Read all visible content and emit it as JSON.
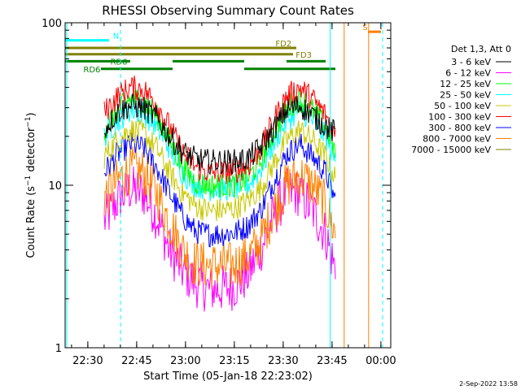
{
  "chart_data": {
    "type": "line",
    "title": "RHESSI Observing Summary Count Rates",
    "xlabel": "Start Time (05-Jan-18 22:23:02)",
    "ylabel": "Count Rate (s⁻¹ detector⁻¹)",
    "ylabel_main": "Count Rate (s",
    "ylabel_sup1": "−1",
    "ylabel_mid": " detector",
    "ylabel_sup2": "−1",
    "ylabel_end": ")",
    "yscale": "log",
    "ylim": [
      1,
      100
    ],
    "xlim": [
      "22:23:02",
      "00:03:02"
    ],
    "xlim_minutes": [
      0,
      100
    ],
    "x_ticks": [
      {
        "label": "22:30",
        "minute": 6.97
      },
      {
        "label": "22:45",
        "minute": 21.97
      },
      {
        "label": "23:00",
        "minute": 36.97
      },
      {
        "label": "23:15",
        "minute": 51.97
      },
      {
        "label": "23:30",
        "minute": 66.97
      },
      {
        "label": "23:45",
        "minute": 81.97
      },
      {
        "label": "00:00",
        "minute": 96.97
      }
    ],
    "y_ticks": [
      {
        "label": "1",
        "value": 1
      },
      {
        "label": "10",
        "value": 10
      },
      {
        "label": "100",
        "value": 100
      }
    ],
    "legend_header": "Det 1,3, Att 0",
    "legend_position": "right",
    "series": [
      {
        "name": "3 - 6 keV",
        "color": "#000000",
        "x": [
          12,
          16,
          20,
          24,
          28,
          32,
          36,
          40,
          44,
          48,
          52,
          56,
          60,
          64,
          68,
          72,
          76,
          80,
          83
        ],
        "y": [
          22,
          28,
          31,
          30,
          26,
          20,
          16,
          14.5,
          14,
          14,
          14,
          14.5,
          17,
          22,
          29,
          31,
          27,
          23,
          21
        ]
      },
      {
        "name": "6 - 12 keV",
        "color": "#ff00ff",
        "x": [
          12,
          16,
          20,
          24,
          28,
          32,
          36,
          40,
          44,
          48,
          52,
          56,
          60,
          64,
          68,
          72,
          76,
          80,
          83
        ],
        "y": [
          6,
          8,
          9.5,
          9,
          6.5,
          4,
          3,
          2.5,
          2.3,
          2.3,
          2.4,
          2.8,
          4,
          6.5,
          9,
          9,
          7,
          5,
          3
        ]
      },
      {
        "name": "12 - 25 keV",
        "color": "#00ff00",
        "x": [
          12,
          16,
          20,
          24,
          28,
          32,
          36,
          40,
          44,
          48,
          52,
          56,
          60,
          64,
          68,
          72,
          76,
          80,
          83
        ],
        "y": [
          22,
          29,
          34,
          33,
          27,
          19,
          13,
          10.5,
          10,
          10,
          10,
          11,
          14,
          21,
          30,
          34,
          29,
          23,
          16
        ]
      },
      {
        "name": "25 - 50 keV",
        "color": "#00ffff",
        "x": [
          12,
          16,
          20,
          24,
          28,
          32,
          36,
          40,
          44,
          48,
          52,
          56,
          60,
          64,
          68,
          72,
          76,
          80,
          83
        ],
        "y": [
          20,
          25,
          29,
          28,
          23,
          17,
          12,
          10,
          9.5,
          9.5,
          9.6,
          10,
          12.5,
          18,
          25,
          29,
          25,
          20,
          14
        ]
      },
      {
        "name": "50 - 100 keV",
        "color": "#c8c800",
        "x": [
          12,
          16,
          20,
          24,
          28,
          32,
          36,
          40,
          44,
          48,
          52,
          56,
          60,
          64,
          68,
          72,
          76,
          80,
          83
        ],
        "y": [
          15,
          19,
          22,
          21,
          17,
          12,
          9,
          7.5,
          7,
          7,
          7.2,
          8,
          9.5,
          13.5,
          19,
          22,
          19,
          15,
          11
        ]
      },
      {
        "name": "100 - 300 keV",
        "color": "#ff0000",
        "x": [
          12,
          16,
          20,
          24,
          28,
          32,
          36,
          40,
          44,
          48,
          52,
          56,
          60,
          64,
          68,
          72,
          76,
          80,
          83
        ],
        "y": [
          28,
          35,
          40,
          39,
          32,
          23,
          16,
          13,
          12,
          12,
          12.2,
          13,
          16.5,
          25,
          35,
          40,
          34,
          27,
          20
        ]
      },
      {
        "name": "300 - 800 keV",
        "color": "#0000ff",
        "x": [
          12,
          16,
          20,
          24,
          28,
          32,
          36,
          40,
          44,
          48,
          52,
          56,
          60,
          64,
          68,
          72,
          76,
          80,
          83
        ],
        "y": [
          12,
          15.5,
          18,
          17,
          13,
          9,
          6.5,
          5.2,
          5,
          5,
          5.1,
          5.6,
          7,
          10.5,
          15.5,
          18,
          15,
          12,
          8
        ]
      },
      {
        "name": "800 - 7000 keV",
        "color": "#ff8000",
        "x": [
          12,
          16,
          20,
          24,
          28,
          32,
          36,
          40,
          44,
          48,
          52,
          56,
          60,
          64,
          68,
          72,
          76,
          80,
          83
        ],
        "y": [
          8.5,
          10.5,
          12.5,
          12,
          9,
          6,
          4,
          3.3,
          3.2,
          3.2,
          3.2,
          3.6,
          4.5,
          7,
          10,
          11.5,
          10,
          7.5,
          5
        ]
      },
      {
        "name": "7000 - 15000 keV",
        "color": "#808000",
        "x": [],
        "y": []
      }
    ],
    "flag_bars": [
      {
        "label": "N",
        "color": "#00ffff",
        "y": 78,
        "segments": [
          [
            0,
            13.5
          ]
        ],
        "label_at": 14.7
      },
      {
        "label": "S",
        "color": "#ff8000",
        "y": 88,
        "segments": [
          [
            93,
            97
          ]
        ],
        "label_at": 91.3
      },
      {
        "label": "FD2",
        "color": "#808000",
        "y": 70,
        "segments": [
          [
            0,
            71
          ]
        ],
        "label_at": 64.6
      },
      {
        "label": "FD3",
        "color": "#808000",
        "y": 64,
        "segments": [
          [
            0,
            70
          ]
        ],
        "label_at": 70.8
      },
      {
        "label": "RD0",
        "color": "#008000",
        "y": 58,
        "segments": [
          [
            0,
            20
          ],
          [
            33,
            55
          ],
          [
            68,
            80
          ]
        ],
        "label_at": 13.9
      },
      {
        "label": "RD6",
        "color": "#008000",
        "y": 52,
        "segments": [
          [
            11,
            33
          ],
          [
            55,
            83
          ]
        ],
        "label_at": 5.6
      }
    ],
    "vertical_lines": [
      {
        "minute": 0.5,
        "color": "#00ffff",
        "style": "solid"
      },
      {
        "minute": 17,
        "color": "#00ffff",
        "style": "dashed"
      },
      {
        "minute": 81.4,
        "color": "#00ffff",
        "style": "solid"
      },
      {
        "minute": 85.7,
        "color": "#ff8000",
        "style": "solid"
      },
      {
        "minute": 93.2,
        "color": "#ff8000",
        "style": "solid"
      },
      {
        "minute": 97.5,
        "color": "#00ffff",
        "style": "dashed"
      }
    ],
    "data_end_minute": 83.5,
    "footer_date": "2-Sep-2022 13:58"
  }
}
